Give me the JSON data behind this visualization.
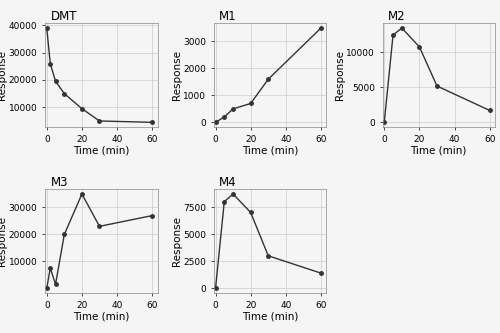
{
  "DMT": {
    "x": [
      0,
      2,
      5,
      10,
      20,
      30,
      60
    ],
    "y": [
      39000,
      26000,
      19500,
      15000,
      9500,
      5000,
      4500
    ],
    "title": "DMT",
    "ylabel": "Response",
    "xlabel": "Time (min)",
    "yticks": [
      10000,
      20000,
      30000,
      40000
    ]
  },
  "M1": {
    "x": [
      0,
      5,
      10,
      20,
      30,
      60
    ],
    "y": [
      0,
      200,
      500,
      700,
      1600,
      3500
    ],
    "title": "M1",
    "ylabel": "Response",
    "xlabel": "Time (min)",
    "yticks": [
      0,
      1000,
      2000,
      3000
    ]
  },
  "M2": {
    "x": [
      0,
      5,
      10,
      20,
      30,
      60
    ],
    "y": [
      0,
      12500,
      13500,
      10800,
      5200,
      1700
    ],
    "title": "M2",
    "ylabel": "Response",
    "xlabel": "Time (min)",
    "yticks": [
      0,
      5000,
      10000
    ]
  },
  "M3": {
    "x": [
      0,
      2,
      5,
      10,
      20,
      30,
      60
    ],
    "y": [
      0,
      7500,
      1500,
      20000,
      35000,
      23000,
      27000
    ],
    "title": "M3",
    "ylabel": "Response",
    "xlabel": "Time (min)",
    "yticks": [
      10000,
      20000,
      30000
    ]
  },
  "M4": {
    "x": [
      0,
      5,
      10,
      20,
      30,
      60
    ],
    "y": [
      0,
      8000,
      8700,
      7000,
      3000,
      1400
    ],
    "title": "M4",
    "ylabel": "Response",
    "xlabel": "Time (min)",
    "yticks": [
      0,
      2500,
      5000,
      7500
    ]
  },
  "line_color": "#333333",
  "marker": "o",
  "markersize": 2.5,
  "linewidth": 1.0,
  "grid_color": "#cccccc",
  "bg_color": "#f5f5f5",
  "tick_labelsize": 6.5,
  "axis_labelsize": 7.5,
  "title_fontsize": 8.5,
  "xticks": [
    0,
    20,
    40,
    60
  ]
}
